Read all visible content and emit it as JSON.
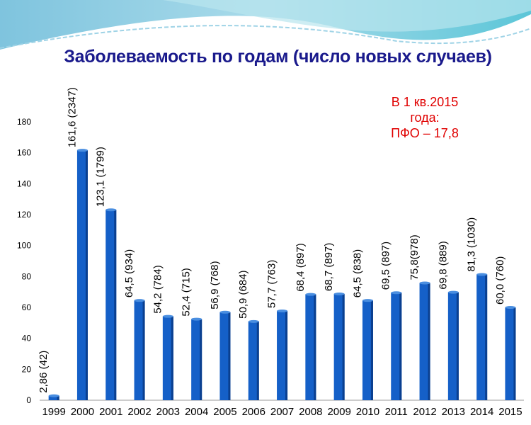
{
  "title": "Заболеваемость по годам (число новых случаев)",
  "note": {
    "line1": "В 1 кв.2015",
    "line2": "года:",
    "line3": "ПФО – 17,8"
  },
  "colors": {
    "bar": "#1560c8",
    "bar_dark": "#0a3f8f",
    "title": "#1a1a8c",
    "note": "#e00000"
  },
  "chart_data": {
    "type": "bar",
    "title": "Заболеваемость по годам (число новых случаев)",
    "xlabel": "",
    "ylabel": "",
    "ylim": [
      0,
      180
    ],
    "yticks": [
      0,
      20,
      40,
      60,
      80,
      100,
      120,
      140,
      160,
      180
    ],
    "categories": [
      "1999",
      "2000",
      "2001",
      "2002",
      "2003",
      "2004",
      "2005",
      "2006",
      "2007",
      "2008",
      "2009",
      "2010",
      "2011",
      "2012",
      "2013",
      "2014",
      "2015"
    ],
    "values": [
      2.86,
      161.6,
      123.1,
      64.5,
      54.2,
      52.4,
      56.9,
      50.9,
      57.7,
      68.4,
      68.7,
      64.5,
      69.5,
      75.8,
      69.8,
      81.3,
      60.0
    ],
    "data_labels": [
      "2,86 (42)",
      "161,6 (2347)",
      "123,1 (1799)",
      "64,5 (934)",
      "54,2 (784)",
      "52,4 (715)",
      "56,9 (768)",
      "50,9 (684)",
      "57,7 (763)",
      "68,4 (897)",
      "68,7 (897)",
      "64,5 (838)",
      "69,5 (897)",
      "75,8(978)",
      "69,8 (889)",
      "81,3 (1030)",
      "60,0 (760)"
    ],
    "grid": false
  }
}
